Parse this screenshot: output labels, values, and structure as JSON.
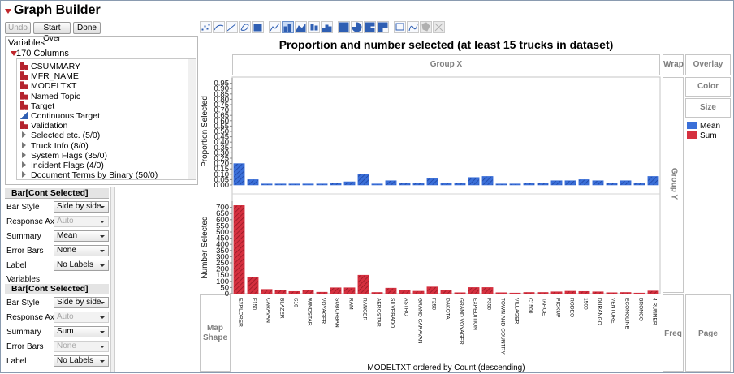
{
  "app": {
    "title": "Graph Builder"
  },
  "toolbar": {
    "undo": "Undo",
    "start_over": "Start Over",
    "done": "Done"
  },
  "element_icons": [
    "points-icon",
    "smoother-icon",
    "line-of-fit-icon",
    "ellipse-icon",
    "contour-icon",
    "line-icon",
    "bar-icon",
    "area-icon",
    "box-plot-icon",
    "histogram-icon",
    "heatmap-icon",
    "pie-icon",
    "treemap-icon",
    "mosaic-icon",
    "caption-box-icon",
    "formula-icon",
    "map-shapes-icon",
    "map-points-icon"
  ],
  "variables": {
    "header": "Variables",
    "column_count": "170 Columns",
    "items": [
      {
        "label": "CSUMMARY",
        "type": "nominal"
      },
      {
        "label": "MFR_NAME",
        "type": "nominal"
      },
      {
        "label": "MODELTXT",
        "type": "nominal"
      },
      {
        "label": "Named Topic",
        "type": "nominal"
      },
      {
        "label": "Target",
        "type": "nominal"
      },
      {
        "label": "Continuous Target",
        "type": "continuous"
      },
      {
        "label": "Validation",
        "type": "nominal"
      },
      {
        "label": "Selected etc. (5/0)",
        "type": "group"
      },
      {
        "label": "Truck Info (8/0)",
        "type": "group"
      },
      {
        "label": "System Flags (35/0)",
        "type": "group"
      },
      {
        "label": "Incident Flags (4/0)",
        "type": "group"
      },
      {
        "label": "Document Terms by Binary (50/0)",
        "type": "group"
      }
    ]
  },
  "panel1": {
    "header": "Bar[Cont Selected]",
    "rows": [
      {
        "label": "Bar Style",
        "value": "Side by side",
        "enabled": true
      },
      {
        "label": "Response Axis",
        "value": "Auto",
        "enabled": false
      },
      {
        "label": "Summary",
        "value": "Mean",
        "enabled": true
      },
      {
        "label": "Error Bars",
        "value": "None",
        "enabled": true
      },
      {
        "label": "Label",
        "value": "No Labels",
        "enabled": true
      }
    ],
    "variables_label": "Variables"
  },
  "panel2": {
    "header": "Bar[Cont Selected]",
    "rows": [
      {
        "label": "Bar Style",
        "value": "Side by side",
        "enabled": true
      },
      {
        "label": "Response Axis",
        "value": "Auto",
        "enabled": false
      },
      {
        "label": "Summary",
        "value": "Sum",
        "enabled": true
      },
      {
        "label": "Error Bars",
        "value": "None",
        "enabled": false
      },
      {
        "label": "Label",
        "value": "No Labels",
        "enabled": true
      }
    ]
  },
  "zones": {
    "group_x": "Group X",
    "wrap": "Wrap",
    "overlay": "Overlay",
    "color": "Color",
    "size": "Size",
    "group_y": "Group Y",
    "map_shape": "Map Shape",
    "freq": "Freq",
    "page": "Page"
  },
  "legend": [
    {
      "label": "Mean",
      "color": "#3a6fd8"
    },
    {
      "label": "Sum",
      "color": "#d5303f"
    }
  ],
  "chart_data": {
    "type": "bar",
    "title": "Proportion and number selected (at least 15 trucks in dataset)",
    "xlabel": "MODELTXT ordered by Count (descending)",
    "categories": [
      "EXPLORER",
      "F150",
      "CARAVAN",
      "BLAZER",
      "S10",
      "WINDSTAR",
      "VOYAGER",
      "SUBURBAN",
      "RAM",
      "RANGER",
      "AEROSTAR",
      "SILVERADO",
      "ASTRO",
      "GRAND CARAVAN",
      "F250",
      "DAKOTA",
      "GRAND VOYAGER",
      "EXPEDITION",
      "F350",
      "TOWN AND COUNTRY",
      "VILLAGER",
      "C1500",
      "TAHOE",
      "PICKUP",
      "RODEO",
      "1500",
      "DURANGO",
      "VENTURE",
      "ECONOLINE",
      "BRONCO",
      "4 RUNNER"
    ],
    "panels": [
      {
        "ylabel": "Proportion Selected",
        "ylim": [
          0,
          1
        ],
        "yticks": [
          0.0,
          0.05,
          0.1,
          0.15,
          0.2,
          0.25,
          0.3,
          0.35,
          0.4,
          0.45,
          0.5,
          0.55,
          0.6,
          0.65,
          0.7,
          0.75,
          0.8,
          0.85,
          0.9,
          0.95
        ],
        "series": [
          {
            "name": "Mean",
            "color": "#3a6fd8",
            "values": [
              0.2,
              0.05,
              0.01,
              0.01,
              0.01,
              0.01,
              0.01,
              0.02,
              0.03,
              0.1,
              0.01,
              0.04,
              0.02,
              0.02,
              0.06,
              0.02,
              0.02,
              0.07,
              0.08,
              0.01,
              0.01,
              0.02,
              0.02,
              0.04,
              0.04,
              0.05,
              0.04,
              0.02,
              0.04,
              0.02,
              0.08
            ]
          }
        ]
      },
      {
        "ylabel": "Number Selected",
        "ylim": [
          0,
          750
        ],
        "yticks": [
          0,
          50,
          100,
          150,
          200,
          250,
          300,
          350,
          400,
          450,
          500,
          550,
          600,
          650,
          700
        ],
        "series": [
          {
            "name": "Sum",
            "color": "#d5303f",
            "values": [
              715,
              135,
              35,
              28,
              18,
              27,
              12,
              48,
              48,
              150,
              10,
              45,
              25,
              20,
              55,
              25,
              8,
              50,
              50,
              8,
              4,
              10,
              10,
              15,
              20,
              18,
              15,
              8,
              10,
              5,
              22
            ]
          }
        ]
      }
    ],
    "grid": false,
    "legend_position": "right"
  }
}
